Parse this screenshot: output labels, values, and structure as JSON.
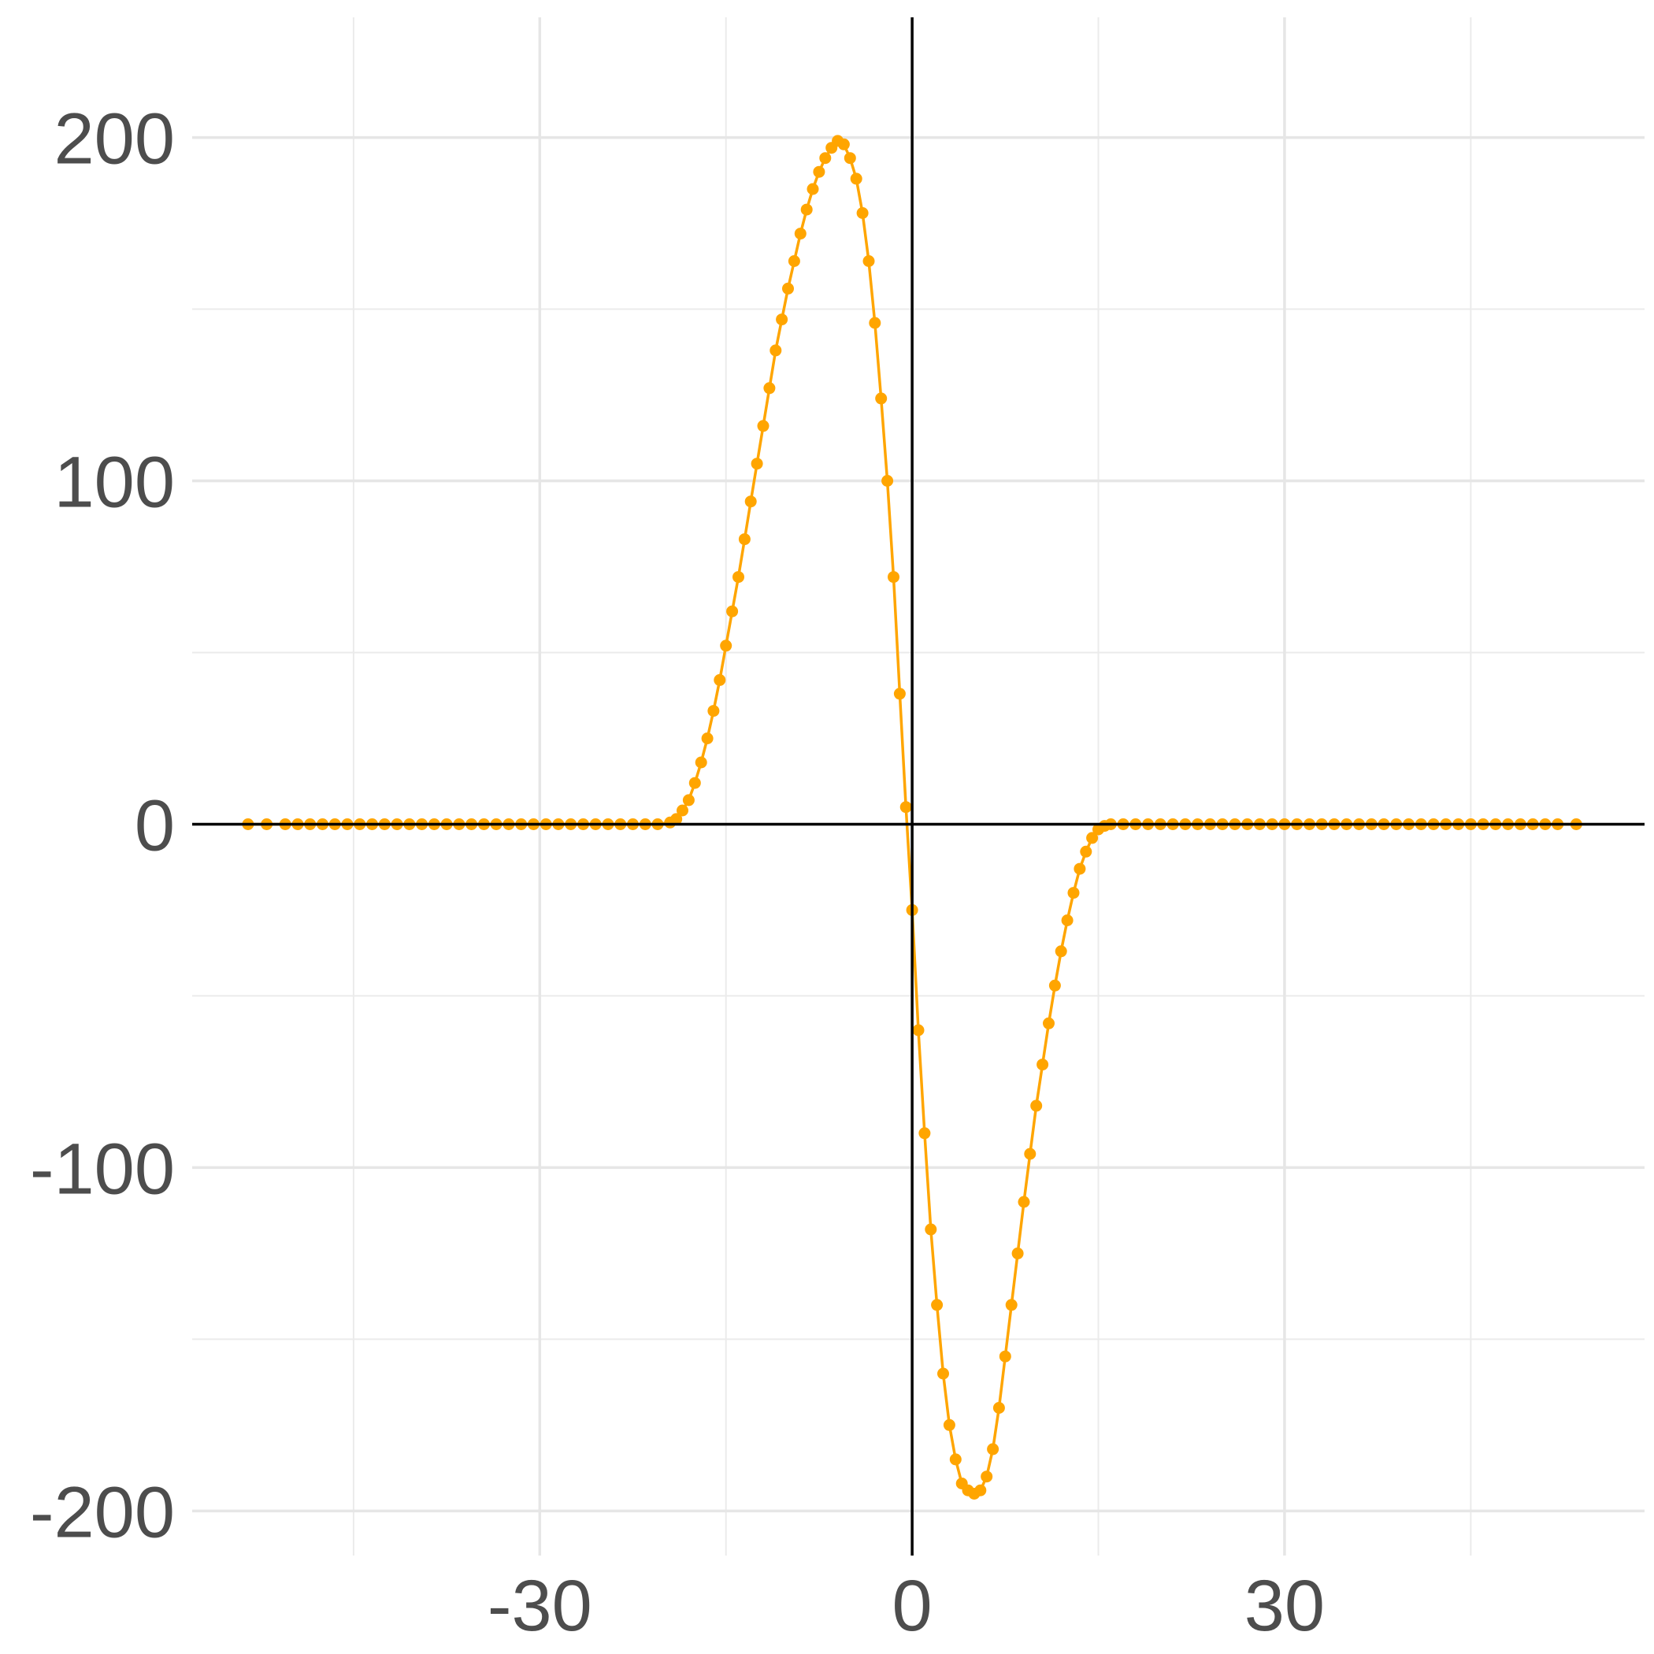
{
  "chart_data": {
    "type": "line",
    "title": "",
    "xlabel": "",
    "ylabel": "",
    "xlim": [
      -58,
      59
    ],
    "ylim": [
      -213,
      235
    ],
    "x_ticks": [
      -30,
      0,
      30
    ],
    "x_tick_labels": [
      "-30",
      "0",
      "30"
    ],
    "x_minor_ticks": [
      -45,
      -15,
      15,
      45
    ],
    "y_ticks": [
      -200,
      -100,
      0,
      100,
      200
    ],
    "y_tick_labels": [
      "-200",
      "-100",
      "0",
      "100",
      "200"
    ],
    "y_minor_ticks": [
      -150,
      -50,
      50,
      150
    ],
    "grid": true,
    "reference_lines": {
      "x": 0,
      "y": 0
    },
    "legend": "none",
    "series": [
      {
        "color": "#FFA500",
        "x": [
          -53.5,
          -52,
          -50.5,
          -49.5,
          -48.5,
          -47.5,
          -46.5,
          -45.5,
          -44.5,
          -43.5,
          -42.5,
          -41.5,
          -40.5,
          -39.5,
          -38.5,
          -37.5,
          -36.5,
          -35.5,
          -34.5,
          -33.5,
          -32.5,
          -31.5,
          -30.5,
          -29.5,
          -28.5,
          -27.5,
          -26.5,
          -25.5,
          -24.5,
          -23.5,
          -22.5,
          -21.5,
          -20.5,
          -19.5,
          -19,
          -18.5,
          -18,
          -17.5,
          -17,
          -16.5,
          -16,
          -15.5,
          -15,
          -14.5,
          -14,
          -13.5,
          -13,
          -12.5,
          -12,
          -11.5,
          -11,
          -10.5,
          -10,
          -9.5,
          -9,
          -8.5,
          -8,
          -7.5,
          -7,
          -6.5,
          -6,
          -5.5,
          -5,
          -4.5,
          -4,
          -3.5,
          -3,
          -2.5,
          -2,
          -1.5,
          -1,
          -0.5,
          0,
          0.5,
          1,
          1.5,
          2,
          2.5,
          3,
          3.5,
          4,
          4.5,
          5,
          5.5,
          6,
          6.5,
          7,
          7.5,
          8,
          8.5,
          9,
          9.5,
          10,
          10.5,
          11,
          11.5,
          12,
          12.5,
          13,
          13.5,
          14,
          14.5,
          15,
          15.5,
          16,
          17,
          18,
          19,
          20,
          21,
          22,
          23,
          24,
          25,
          26,
          27,
          28,
          29,
          30,
          31,
          32,
          33,
          34,
          35,
          36,
          37,
          38,
          39,
          40,
          41,
          42,
          43,
          44,
          45,
          46,
          47,
          48,
          49,
          50,
          51,
          52,
          53.5
        ],
        "y": [
          0,
          0,
          0,
          0,
          0,
          0,
          0,
          0,
          0,
          0,
          0,
          0,
          0,
          0,
          0,
          0,
          0,
          0,
          0,
          0,
          0,
          0,
          0,
          0,
          0,
          0,
          0,
          0,
          0,
          0,
          0,
          0,
          0,
          0.5,
          1.5,
          4,
          7,
          12,
          18,
          25,
          33,
          42,
          52,
          62,
          72,
          83,
          94,
          105,
          116,
          127,
          138,
          147,
          156,
          164,
          172,
          179,
          185,
          190,
          194,
          197,
          199,
          198,
          194,
          188,
          178,
          164,
          146,
          124,
          100,
          72,
          38,
          5,
          -25,
          -60,
          -90,
          -118,
          -140,
          -160,
          -175,
          -185,
          -192,
          -194,
          -195,
          -194,
          -190,
          -182,
          -170,
          -155,
          -140,
          -125,
          -110,
          -96,
          -82,
          -70,
          -58,
          -47,
          -37,
          -28,
          -20,
          -13,
          -8,
          -4,
          -1.5,
          -0.5,
          0,
          0,
          0,
          0,
          0,
          0,
          0,
          0,
          0,
          0,
          0,
          0,
          0,
          0,
          0,
          0,
          0,
          0,
          0,
          0,
          0,
          0,
          0,
          0,
          0,
          0,
          0,
          0,
          0,
          0,
          0,
          0,
          0,
          0,
          0,
          0,
          0,
          0
        ]
      }
    ]
  }
}
